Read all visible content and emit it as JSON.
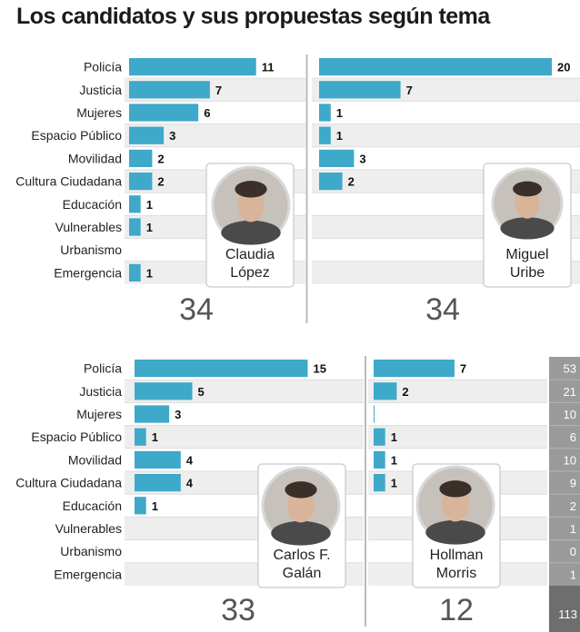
{
  "title": "Los candidatos y sus propuestas según tema",
  "chart_data": {
    "type": "bar",
    "categories": [
      "Policía",
      "Justicia",
      "Mujeres",
      "Espacio Público",
      "Movilidad",
      "Cultura Ciudadana",
      "Educación",
      "Vulnerables",
      "Urbanismo",
      "Emergencia"
    ],
    "series": [
      {
        "name": "Claudia López",
        "values": [
          11,
          7,
          6,
          3,
          2,
          2,
          1,
          1,
          null,
          1
        ],
        "total": 34
      },
      {
        "name": "Miguel Uribe",
        "values": [
          20,
          7,
          1,
          1,
          3,
          2,
          null,
          null,
          null,
          null
        ],
        "total": 34
      },
      {
        "name": "Carlos F. Galán",
        "values": [
          15,
          5,
          3,
          1,
          4,
          4,
          1,
          null,
          null,
          null
        ],
        "total": 33
      },
      {
        "name": "Hollman Morris",
        "values": [
          7,
          2,
          0,
          1,
          1,
          1,
          null,
          null,
          null,
          null
        ],
        "total": 12
      }
    ],
    "category_totals": [
      53,
      21,
      10,
      6,
      10,
      9,
      2,
      1,
      0,
      1
    ],
    "grand_total": 113,
    "colors": {
      "bar": "#3ea9c9",
      "stripe": "#eeeeee",
      "sum_column": "#9a9a9a",
      "sum_total": "#6e6e6e"
    }
  },
  "candidates": [
    {
      "line1": "Claudia",
      "line2": "López"
    },
    {
      "line1": "Miguel",
      "line2": "Uribe"
    },
    {
      "line1": "Carlos F.",
      "line2": "Galán"
    },
    {
      "line1": "Hollman",
      "line2": "Morris"
    }
  ]
}
